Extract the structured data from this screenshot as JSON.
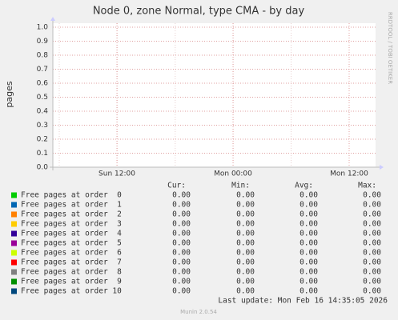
{
  "chart_data": {
    "type": "line",
    "title": "Node 0, zone Normal, type CMA - by day",
    "ylabel": "pages",
    "side_label": "RRDTOOL / TOBI OETIKER",
    "ylim": [
      0,
      1
    ],
    "yticks": [
      {
        "value": 0,
        "label": "0.0"
      },
      0.1,
      0.2,
      0.3,
      0.4,
      0.5,
      0.6,
      0.7,
      0.8,
      0.9,
      {
        "value": 1,
        "label": "1.0"
      }
    ],
    "grid": true,
    "xticks": [
      "Sun 12:00",
      "Mon 00:00",
      "Mon 12:00"
    ],
    "legend_columns": [
      "Cur:",
      "Min:",
      "Avg:",
      "Max:"
    ],
    "series": [
      {
        "name": "Free pages at order  0",
        "color": "#00cc00",
        "stats": [
          "0.00",
          "0.00",
          "0.00",
          "0.00"
        ]
      },
      {
        "name": "Free pages at order  1",
        "color": "#0066b3",
        "stats": [
          "0.00",
          "0.00",
          "0.00",
          "0.00"
        ]
      },
      {
        "name": "Free pages at order  2",
        "color": "#ff8000",
        "stats": [
          "0.00",
          "0.00",
          "0.00",
          "0.00"
        ]
      },
      {
        "name": "Free pages at order  3",
        "color": "#ffcc00",
        "stats": [
          "0.00",
          "0.00",
          "0.00",
          "0.00"
        ]
      },
      {
        "name": "Free pages at order  4",
        "color": "#330099",
        "stats": [
          "0.00",
          "0.00",
          "0.00",
          "0.00"
        ]
      },
      {
        "name": "Free pages at order  5",
        "color": "#990099",
        "stats": [
          "0.00",
          "0.00",
          "0.00",
          "0.00"
        ]
      },
      {
        "name": "Free pages at order  6",
        "color": "#ccff00",
        "stats": [
          "0.00",
          "0.00",
          "0.00",
          "0.00"
        ]
      },
      {
        "name": "Free pages at order  7",
        "color": "#ff0000",
        "stats": [
          "0.00",
          "0.00",
          "0.00",
          "0.00"
        ]
      },
      {
        "name": "Free pages at order  8",
        "color": "#808080",
        "stats": [
          "0.00",
          "0.00",
          "0.00",
          "0.00"
        ]
      },
      {
        "name": "Free pages at order  9",
        "color": "#008f00",
        "stats": [
          "0.00",
          "0.00",
          "0.00",
          "0.00"
        ]
      },
      {
        "name": "Free pages at order 10",
        "color": "#00487d",
        "stats": [
          "0.00",
          "0.00",
          "0.00",
          "0.00"
        ]
      }
    ],
    "last_update": "Last update: Mon Feb 16 14:35:05 2026",
    "footer": "Munin 2.0.54"
  }
}
